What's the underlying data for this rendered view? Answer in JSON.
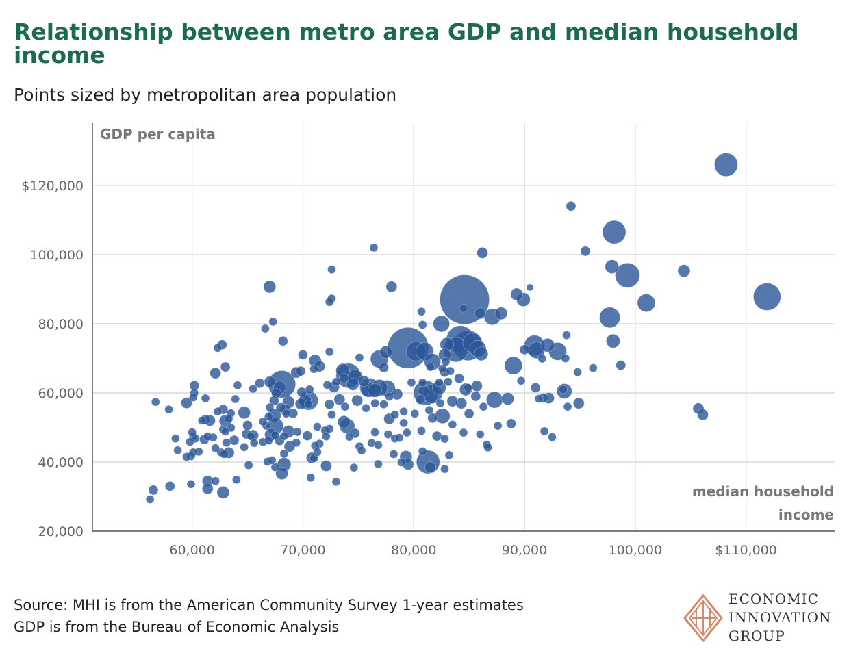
{
  "title": "Relationship between metro area GDP and median household income",
  "subtitle": "Points sized by metropolitan area population",
  "source_line1": "Source: MHI is from the American Community Survey 1-year estimates",
  "source_line2": "GDP is from the Bureau of Economic Analysis",
  "logo": {
    "line1": "ECONOMIC",
    "line2": "INNOVATION",
    "line3": "GROUP"
  },
  "colors": {
    "title": "#1d6b4d",
    "point": "#2b5697",
    "grid": "#d0d0d0",
    "logo_accent": "#d48b6a"
  },
  "chart_data": {
    "type": "scatter",
    "ylabel": "GDP per capita",
    "xlabel_lines": [
      "median household",
      "income"
    ],
    "xlim": [
      51000,
      118000
    ],
    "ylim": [
      20000,
      138000
    ],
    "x_ticks": [
      {
        "value": 60000,
        "label": "60,000"
      },
      {
        "value": 70000,
        "label": "70,000"
      },
      {
        "value": 80000,
        "label": "80,000"
      },
      {
        "value": 90000,
        "label": "90,000"
      },
      {
        "value": 100000,
        "label": "100,000"
      },
      {
        "value": 110000,
        "label": "$110,000"
      }
    ],
    "y_ticks": [
      {
        "value": 20000,
        "label": "20,000"
      },
      {
        "value": 40000,
        "label": "40,000"
      },
      {
        "value": 60000,
        "label": "60,000"
      },
      {
        "value": 80000,
        "label": "80,000"
      },
      {
        "value": 100000,
        "label": "100,000"
      },
      {
        "value": 120000,
        "label": "$120,000"
      }
    ],
    "grid": true,
    "points": [
      [
        108200,
        126000,
        17
      ],
      [
        94200,
        114000,
        7
      ],
      [
        98100,
        106500,
        17
      ],
      [
        99300,
        94000,
        18
      ],
      [
        97900,
        96500,
        10
      ],
      [
        104400,
        95300,
        9
      ],
      [
        95500,
        101000,
        7
      ],
      [
        101000,
        86000,
        13
      ],
      [
        111900,
        87800,
        20
      ],
      [
        97700,
        81800,
        15
      ],
      [
        98000,
        75000,
        10
      ],
      [
        98700,
        68000,
        7
      ],
      [
        94800,
        66000,
        6
      ],
      [
        94900,
        57000,
        8
      ],
      [
        105700,
        55500,
        8
      ],
      [
        106100,
        53700,
        8
      ],
      [
        86200,
        100500,
        8
      ],
      [
        90500,
        90500,
        5
      ],
      [
        89900,
        87000,
        10
      ],
      [
        89300,
        88500,
        9
      ],
      [
        87100,
        82000,
        12
      ],
      [
        87900,
        83000,
        9
      ],
      [
        84600,
        87000,
        36
      ],
      [
        86000,
        83000,
        8
      ],
      [
        84500,
        84500,
        6
      ],
      [
        84200,
        75500,
        20
      ],
      [
        84900,
        73700,
        22
      ],
      [
        83800,
        72500,
        18
      ],
      [
        85800,
        72800,
        12
      ],
      [
        85300,
        74500,
        14
      ],
      [
        86100,
        71300,
        10
      ],
      [
        82500,
        80000,
        12
      ],
      [
        83000,
        74000,
        10
      ],
      [
        81000,
        72000,
        13
      ],
      [
        79500,
        73000,
        30
      ],
      [
        80200,
        72000,
        14
      ],
      [
        81700,
        69000,
        12
      ],
      [
        82800,
        71000,
        9
      ],
      [
        82300,
        61500,
        10
      ],
      [
        81700,
        59700,
        14
      ],
      [
        81100,
        60000,
        18
      ],
      [
        81300,
        40000,
        17
      ],
      [
        81500,
        38500,
        8
      ],
      [
        82600,
        53300,
        11
      ],
      [
        84100,
        64200,
        7
      ],
      [
        84700,
        61000,
        9
      ],
      [
        85600,
        59000,
        7
      ],
      [
        85700,
        62000,
        8
      ],
      [
        86300,
        56000,
        6
      ],
      [
        87300,
        58000,
        12
      ],
      [
        88500,
        58300,
        9
      ],
      [
        89000,
        67900,
        13
      ],
      [
        89700,
        63500,
        6
      ],
      [
        90000,
        72500,
        7
      ],
      [
        90900,
        73700,
        15
      ],
      [
        91100,
        72300,
        12
      ],
      [
        92100,
        73800,
        10
      ],
      [
        93000,
        72000,
        13
      ],
      [
        93500,
        61000,
        6
      ],
      [
        93600,
        60500,
        11
      ],
      [
        92200,
        58500,
        8
      ],
      [
        91700,
        58500,
        7
      ],
      [
        91800,
        48900,
        6
      ],
      [
        92500,
        47200,
        6
      ],
      [
        91000,
        61500,
        7
      ],
      [
        91600,
        69900,
        6
      ],
      [
        93900,
        56000,
        6
      ],
      [
        93800,
        76700,
        6
      ],
      [
        93700,
        70000,
        6
      ],
      [
        87600,
        50500,
        6
      ],
      [
        86600,
        45000,
        6
      ],
      [
        86700,
        44200,
        6
      ],
      [
        85000,
        54000,
        7
      ],
      [
        84300,
        57000,
        8
      ],
      [
        83500,
        57600,
        8
      ],
      [
        82800,
        66000,
        7
      ],
      [
        83300,
        66300,
        6
      ],
      [
        82300,
        63000,
        6
      ],
      [
        80800,
        63000,
        6
      ],
      [
        79800,
        63000,
        6
      ],
      [
        80900,
        60500,
        8
      ],
      [
        82400,
        57000,
        6
      ],
      [
        83200,
        42000,
        6
      ],
      [
        82800,
        38000,
        6
      ],
      [
        82100,
        47500,
        7
      ],
      [
        82800,
        46700,
        6
      ],
      [
        80800,
        43100,
        6
      ],
      [
        79300,
        41500,
        9
      ],
      [
        79500,
        39300,
        8
      ],
      [
        79400,
        48500,
        6
      ],
      [
        79100,
        51300,
        6
      ],
      [
        77800,
        52500,
        8
      ],
      [
        78300,
        53700,
        6
      ],
      [
        76400,
        102000,
        6
      ],
      [
        78000,
        90700,
        8
      ],
      [
        77300,
        67300,
        7
      ],
      [
        76900,
        69800,
        13
      ],
      [
        77500,
        71800,
        9
      ],
      [
        77600,
        61300,
        12
      ],
      [
        76900,
        61500,
        12
      ],
      [
        76500,
        60700,
        10
      ],
      [
        76000,
        61500,
        14
      ],
      [
        75900,
        61000,
        11
      ],
      [
        75500,
        63400,
        8
      ],
      [
        74700,
        64600,
        11
      ],
      [
        74500,
        62500,
        9
      ],
      [
        74900,
        57800,
        8
      ],
      [
        73700,
        64300,
        7
      ],
      [
        73600,
        66500,
        10
      ],
      [
        74100,
        65000,
        18
      ],
      [
        73000,
        63200,
        6
      ],
      [
        72200,
        62300,
        6
      ],
      [
        72800,
        61700,
        8
      ],
      [
        72400,
        56700,
        7
      ],
      [
        73300,
        58100,
        8
      ],
      [
        72600,
        53700,
        6
      ],
      [
        73700,
        51600,
        9
      ],
      [
        74000,
        50400,
        11
      ],
      [
        74700,
        48300,
        7
      ],
      [
        75100,
        44500,
        6
      ],
      [
        76200,
        45500,
        6
      ],
      [
        76500,
        48600,
        6
      ],
      [
        77700,
        48000,
        6
      ],
      [
        78300,
        46800,
        6
      ],
      [
        78700,
        47000,
        6
      ],
      [
        78900,
        39900,
        6
      ],
      [
        76800,
        39400,
        6
      ],
      [
        74600,
        38400,
        6
      ],
      [
        73000,
        34300,
        6
      ],
      [
        72100,
        38900,
        8
      ],
      [
        71500,
        45300,
        6
      ],
      [
        70800,
        41200,
        8
      ],
      [
        71000,
        41100,
        6
      ],
      [
        70700,
        35500,
        6
      ],
      [
        71100,
        44700,
        6
      ],
      [
        70400,
        47600,
        7
      ],
      [
        70500,
        57800,
        14
      ],
      [
        70200,
        57800,
        9
      ],
      [
        69800,
        56800,
        8
      ],
      [
        69900,
        60200,
        7
      ],
      [
        70600,
        61000,
        6
      ],
      [
        71000,
        66900,
        6
      ],
      [
        71100,
        69300,
        9
      ],
      [
        71500,
        67700,
        8
      ],
      [
        72400,
        71900,
        6
      ],
      [
        72600,
        95700,
        6
      ],
      [
        72600,
        87300,
        6
      ],
      [
        72400,
        86300,
        6
      ],
      [
        70500,
        56700,
        6
      ],
      [
        68100,
        62500,
        20
      ],
      [
        67900,
        61600,
        9
      ],
      [
        67000,
        63200,
        8
      ],
      [
        67600,
        59900,
        7
      ],
      [
        67400,
        57700,
        7
      ],
      [
        67000,
        55800,
        6
      ],
      [
        68700,
        57300,
        9
      ],
      [
        68400,
        55200,
        8
      ],
      [
        69100,
        54100,
        7
      ],
      [
        68000,
        55700,
        7
      ],
      [
        68500,
        54000,
        6
      ],
      [
        67400,
        53500,
        10
      ],
      [
        66900,
        53100,
        6
      ],
      [
        67500,
        50400,
        12
      ],
      [
        66700,
        50500,
        6
      ],
      [
        66400,
        51700,
        6
      ],
      [
        67100,
        47900,
        9
      ],
      [
        67500,
        47700,
        6
      ],
      [
        67900,
        46200,
        7
      ],
      [
        68700,
        48800,
        9
      ],
      [
        68300,
        47500,
        6
      ],
      [
        68800,
        44500,
        8
      ],
      [
        69400,
        45600,
        6
      ],
      [
        68300,
        42400,
        6
      ],
      [
        68300,
        39300,
        10
      ],
      [
        68100,
        36700,
        9
      ],
      [
        67500,
        38500,
        6
      ],
      [
        66800,
        40100,
        6
      ],
      [
        67200,
        40500,
        6
      ],
      [
        66400,
        45800,
        6
      ],
      [
        65500,
        47700,
        8
      ],
      [
        64900,
        48100,
        7
      ],
      [
        65000,
        50600,
        7
      ],
      [
        65300,
        47500,
        6
      ],
      [
        64700,
        54300,
        9
      ],
      [
        63900,
        58200,
        6
      ],
      [
        63500,
        54100,
        6
      ],
      [
        63300,
        52500,
        6
      ],
      [
        63000,
        51900,
        9
      ],
      [
        63500,
        49900,
        6
      ],
      [
        62800,
        49400,
        6
      ],
      [
        63000,
        48800,
        6
      ],
      [
        63100,
        45600,
        6
      ],
      [
        63300,
        42700,
        8
      ],
      [
        62600,
        42800,
        6
      ],
      [
        62100,
        44000,
        6
      ],
      [
        61900,
        47100,
        6
      ],
      [
        61100,
        46500,
        7
      ],
      [
        60300,
        46800,
        6
      ],
      [
        60100,
        47300,
        6
      ],
      [
        59800,
        45800,
        6
      ],
      [
        60600,
        43000,
        6
      ],
      [
        60100,
        42800,
        6
      ],
      [
        59900,
        41700,
        6
      ],
      [
        59500,
        41500,
        6
      ],
      [
        60000,
        48600,
        6
      ],
      [
        61600,
        52000,
        8
      ],
      [
        61200,
        52300,
        7
      ],
      [
        62300,
        54600,
        6
      ],
      [
        62800,
        55200,
        7
      ],
      [
        61200,
        58400,
        6
      ],
      [
        60200,
        60000,
        6
      ],
      [
        60100,
        58700,
        6
      ],
      [
        60200,
        62100,
        7
      ],
      [
        59500,
        57100,
        8
      ],
      [
        62100,
        65700,
        8
      ],
      [
        63000,
        67500,
        7
      ],
      [
        62300,
        73000,
        6
      ],
      [
        62700,
        73900,
        7
      ],
      [
        61400,
        34500,
        8
      ],
      [
        61400,
        32300,
        8
      ],
      [
        62100,
        34500,
        6
      ],
      [
        62800,
        31200,
        9
      ],
      [
        59900,
        33600,
        6
      ],
      [
        58000,
        33000,
        7
      ],
      [
        56500,
        31900,
        7
      ],
      [
        56200,
        29200,
        6
      ],
      [
        56700,
        57400,
        6
      ],
      [
        57900,
        55200,
        6
      ],
      [
        58500,
        46800,
        6
      ],
      [
        58700,
        43400,
        6
      ],
      [
        64000,
        34900,
        6
      ],
      [
        65500,
        61200,
        6
      ],
      [
        64100,
        62200,
        6
      ],
      [
        66100,
        62800,
        7
      ],
      [
        66600,
        78600,
        6
      ],
      [
        67300,
        80600,
        6
      ],
      [
        68200,
        75000,
        7
      ],
      [
        67000,
        90700,
        9
      ],
      [
        69400,
        65900,
        8
      ],
      [
        69800,
        66300,
        7
      ],
      [
        70000,
        71000,
        7
      ],
      [
        72400,
        49600,
        6
      ],
      [
        72000,
        49100,
        6
      ],
      [
        71300,
        50200,
        6
      ],
      [
        72100,
        47400,
        6
      ],
      [
        71300,
        42900,
        6
      ],
      [
        73800,
        56000,
        6
      ],
      [
        75100,
        70200,
        6
      ],
      [
        75700,
        55600,
        6
      ],
      [
        76500,
        57000,
        6
      ],
      [
        78200,
        42300,
        6
      ],
      [
        80100,
        54000,
        6
      ],
      [
        80700,
        49000,
        6
      ],
      [
        81500,
        67500,
        6
      ],
      [
        82600,
        67000,
        6
      ],
      [
        83100,
        63200,
        6
      ],
      [
        84500,
        48500,
        6
      ],
      [
        83500,
        50800,
        6
      ],
      [
        84900,
        61500,
        6
      ],
      [
        86000,
        48000,
        6
      ],
      [
        88800,
        51100,
        7
      ],
      [
        91300,
        58300,
        6
      ],
      [
        96200,
        67200,
        6
      ],
      [
        80700,
        83500,
        6
      ],
      [
        80800,
        79700,
        6
      ],
      [
        82900,
        69000,
        6
      ],
      [
        74200,
        47300,
        6
      ],
      [
        75300,
        43300,
        6
      ],
      [
        76800,
        44900,
        6
      ],
      [
        77300,
        56700,
        6
      ],
      [
        77800,
        58900,
        6
      ],
      [
        78500,
        59600,
        8
      ],
      [
        79100,
        54600,
        6
      ],
      [
        80600,
        58100,
        7
      ],
      [
        81400,
        55000,
        6
      ],
      [
        81700,
        52700,
        7
      ],
      [
        65100,
        39100,
        6
      ],
      [
        65600,
        45500,
        6
      ],
      [
        66900,
        46200,
        6
      ],
      [
        69500,
        48700,
        6
      ],
      [
        64700,
        44300,
        6
      ],
      [
        63800,
        46300,
        7
      ],
      [
        62900,
        42300,
        6
      ],
      [
        61400,
        47400,
        6
      ],
      [
        60900,
        52000,
        6
      ]
    ],
    "scale": {
      "population_radius_px": "radius px"
    }
  }
}
